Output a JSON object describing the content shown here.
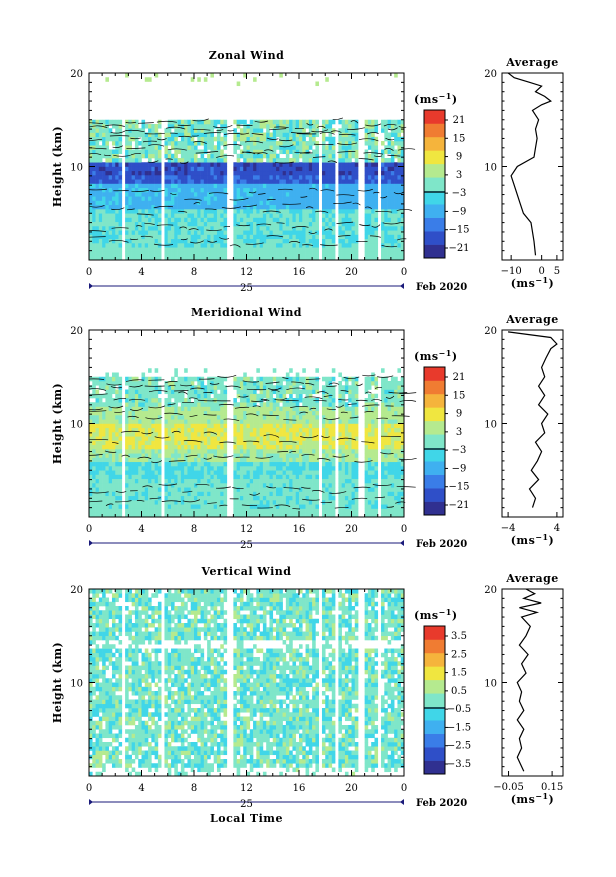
{
  "chart_data": [
    {
      "type": "heatmap",
      "title": "Zonal Wind",
      "ylabel": "Height (km)",
      "ylim": [
        0,
        20
      ],
      "yticks": [
        "10",
        "20"
      ],
      "xticks": [
        "0",
        "4",
        "8",
        "12",
        "16",
        "20",
        "0"
      ],
      "xlim": [
        0,
        24
      ],
      "date_day": "25",
      "date_month": "Feb 2020",
      "colorbar": {
        "unit": "(ms",
        "unit_sup": "−1",
        "unit_close": ")",
        "labels": [
          "21",
          "15",
          "9",
          "3",
          "−3",
          "−9",
          "−15",
          "−21"
        ],
        "range": [
          -24,
          24
        ]
      },
      "average": {
        "title": "Average",
        "yticks": [
          "10",
          "20"
        ],
        "xticks": [
          "−10",
          "0",
          "5"
        ],
        "xlim": [
          -13,
          7
        ],
        "xlabel": "(ms",
        "xlabel_sup": "−1",
        "xlabel_close": ")",
        "profile": [
          [
            0.5,
            -2
          ],
          [
            2,
            -2.5
          ],
          [
            4,
            -3.5
          ],
          [
            5,
            -6
          ],
          [
            6,
            -7
          ],
          [
            8,
            -9
          ],
          [
            9,
            -10
          ],
          [
            10,
            -8
          ],
          [
            11,
            -2.5
          ],
          [
            12,
            -2
          ],
          [
            13,
            -1.5
          ],
          [
            14,
            -2
          ],
          [
            15,
            -1
          ],
          [
            16,
            -3
          ],
          [
            16.6,
            0
          ],
          [
            17,
            3
          ],
          [
            17.5,
            1
          ],
          [
            18,
            -2
          ],
          [
            18.6,
            0
          ],
          [
            19,
            -4
          ],
          [
            19.5,
            -9
          ],
          [
            20,
            -11
          ]
        ]
      }
    },
    {
      "type": "heatmap",
      "title": "Meridional Wind",
      "ylabel": "Height (km)",
      "ylim": [
        0,
        20
      ],
      "yticks": [
        "10",
        "20"
      ],
      "xticks": [
        "0",
        "4",
        "8",
        "12",
        "16",
        "20",
        "0"
      ],
      "xlim": [
        0,
        24
      ],
      "date_day": "25",
      "date_month": "Feb 2020",
      "colorbar": {
        "unit": "(ms",
        "unit_sup": "−1",
        "unit_close": ")",
        "labels": [
          "21",
          "15",
          "9",
          "3",
          "−3",
          "−9",
          "−15",
          "−21"
        ],
        "range": [
          -24,
          24
        ]
      },
      "average": {
        "title": "Average",
        "yticks": [
          "10",
          "20"
        ],
        "xticks": [
          "−4",
          "4"
        ],
        "xlim": [
          -5,
          5
        ],
        "xlabel": "(ms",
        "xlabel_sup": "−1",
        "xlabel_close": ")",
        "profile": [
          [
            1,
            0
          ],
          [
            2,
            0.5
          ],
          [
            3,
            -0.5
          ],
          [
            4,
            1
          ],
          [
            5,
            -0.2
          ],
          [
            6,
            0.8
          ],
          [
            7,
            1.5
          ],
          [
            8,
            0.5
          ],
          [
            9,
            2
          ],
          [
            10,
            1.5
          ],
          [
            11,
            2.5
          ],
          [
            12,
            1
          ],
          [
            13,
            2
          ],
          [
            14,
            1
          ],
          [
            15,
            2
          ],
          [
            16,
            1.5
          ],
          [
            17,
            2.2
          ],
          [
            18,
            3
          ],
          [
            18.5,
            4
          ],
          [
            19.2,
            3
          ],
          [
            19.8,
            -4
          ]
        ]
      }
    },
    {
      "type": "heatmap",
      "title": "Vertical Wind",
      "ylabel": "Height (km)",
      "ylim": [
        0,
        20
      ],
      "yticks": [
        "10",
        "20"
      ],
      "xticks": [
        "0",
        "4",
        "8",
        "12",
        "16",
        "20",
        "0"
      ],
      "xlim": [
        0,
        24
      ],
      "date_day": "25",
      "date_month": "Feb 2020",
      "xlabel": "Local Time",
      "colorbar": {
        "unit": "(ms",
        "unit_sup": "−1",
        "unit_close": ")",
        "labels": [
          "3.5",
          "2.5",
          "1.5",
          "0.5",
          "−0.5",
          "−1.5",
          "−2.5",
          "−3.5"
        ],
        "range": [
          -4,
          4
        ]
      },
      "average": {
        "title": "Average",
        "yticks": [
          "10",
          "20"
        ],
        "xticks": [
          "−0.05",
          "0.15"
        ],
        "xlim": [
          -0.08,
          0.2
        ],
        "xlabel": "(ms",
        "xlabel_sup": "−1",
        "xlabel_close": ")",
        "profile": [
          [
            0.5,
            0.02
          ],
          [
            2,
            -0.01
          ],
          [
            3,
            0.01
          ],
          [
            4,
            0.0
          ],
          [
            5,
            0.02
          ],
          [
            6,
            -0.01
          ],
          [
            7,
            0.02
          ],
          [
            8,
            0.0
          ],
          [
            9,
            0.01
          ],
          [
            10,
            -0.01
          ],
          [
            11,
            0.03
          ],
          [
            12,
            0.01
          ],
          [
            13,
            0.04
          ],
          [
            14,
            0.0
          ],
          [
            15,
            0.03
          ],
          [
            16,
            0.05
          ],
          [
            17,
            0.01
          ],
          [
            17.5,
            0.08
          ],
          [
            18,
            0.0
          ],
          [
            18.5,
            0.1
          ],
          [
            19,
            0.02
          ],
          [
            19.5,
            0.07
          ],
          [
            20,
            0.03
          ]
        ]
      }
    }
  ]
}
